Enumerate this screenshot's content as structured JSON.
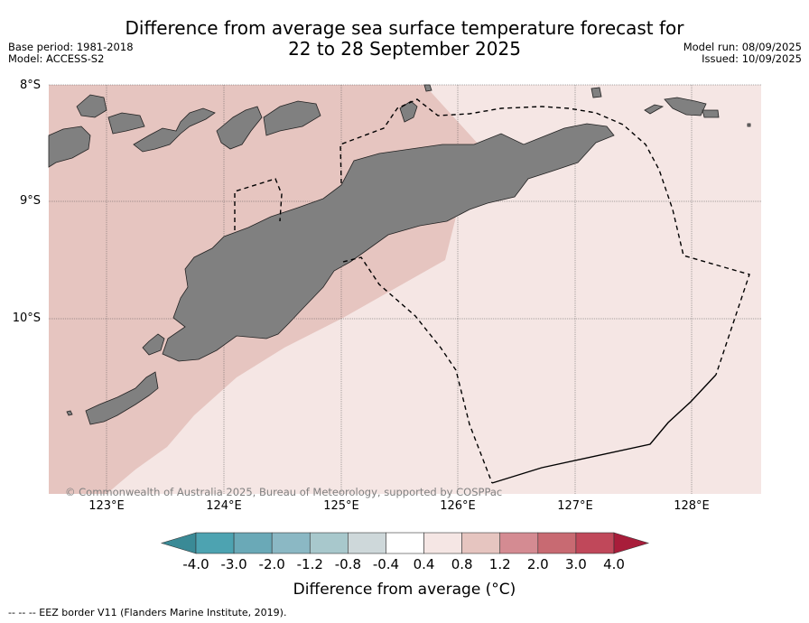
{
  "title_line1": "Difference from average sea surface temperature forecast for",
  "title_line2": "22 to 28 September 2025",
  "base_period": "Base period: 1981-2018",
  "model": "Model: ACCESS-S2",
  "model_run": "Model run: 08/09/2025",
  "issued": "Issued: 10/09/2025",
  "lat_labels": [
    "8°S",
    "9°S",
    "10°S"
  ],
  "lon_labels": [
    "123°E",
    "124°E",
    "125°E",
    "126°E",
    "127°E",
    "128°E"
  ],
  "copyright": "© Commonwealth of Australia 2025, Bureau of Meteorology, supported by COSPPac",
  "colorbar": {
    "title": "Difference from average (°C)",
    "ticks": [
      "-4.0",
      "-3.0",
      "-2.0",
      "-1.2",
      "-0.8",
      "-0.4",
      "0.4",
      "0.8",
      "1.2",
      "2.0",
      "3.0",
      "4.0"
    ],
    "colors": [
      "#4da3b1",
      "#6aa9b7",
      "#8bb8c4",
      "#a8c8cc",
      "#ced8da",
      "#ffffff",
      "#f5e6e4",
      "#e6c5c0",
      "#d48b92",
      "#c86a72",
      "#c0485a"
    ],
    "under_color": "#3a8a96",
    "over_color": "#a81d3a"
  },
  "legend_text": "--  --  -- EEZ border V11 (Flanders Marine Institute, 2019).",
  "colors": {
    "land": "#808080",
    "anomaly_0_4_to_0_8": "#f5e6e4",
    "anomaly_0_8_to_1_2": "#e6c5c0"
  }
}
